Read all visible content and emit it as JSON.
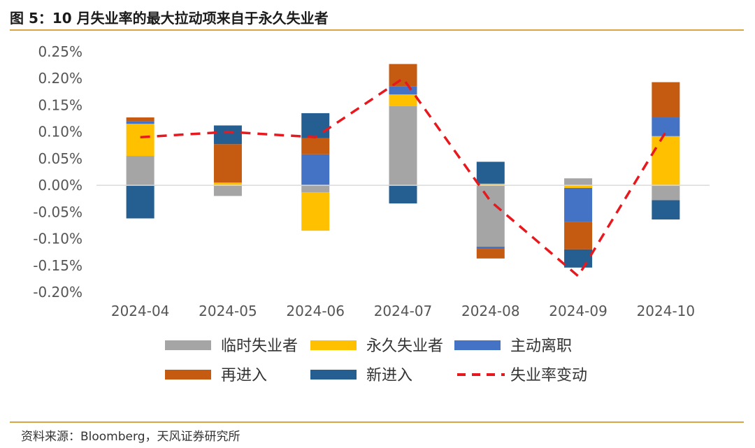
{
  "title": "图 5：10 月失业率的最大拉动项来自于永久失业者",
  "source": "资料来源：Bloomberg，天风证券研究所",
  "chart_data": {
    "type": "bar",
    "stacked": true,
    "title": "图 5：10 月失业率的最大拉动项来自于永久失业者",
    "xlabel": "",
    "ylabel": "",
    "categories": [
      "2024-04",
      "2024-05",
      "2024-06",
      "2024-07",
      "2024-08",
      "2024-09",
      "2024-10"
    ],
    "ylim": [
      -0.2,
      0.25
    ],
    "yticks": [
      0.25,
      0.2,
      0.15,
      0.1,
      0.05,
      0.0,
      -0.05,
      -0.1,
      -0.15,
      -0.2
    ],
    "ytick_labels": [
      "0.25%",
      "0.20%",
      "0.15%",
      "0.10%",
      "0.05%",
      "0.00%",
      "-0.05%",
      "-0.10%",
      "-0.15%",
      "-0.20%"
    ],
    "legend_position": "bottom",
    "grid": false,
    "series": [
      {
        "name": "临时失业者",
        "color": "#a5a5a5",
        "type": "bar",
        "values": [
          0.055,
          -0.02,
          -0.013,
          0.148,
          -0.115,
          0.013,
          -0.028
        ]
      },
      {
        "name": "永久失业者",
        "color": "#ffc000",
        "type": "bar",
        "values": [
          0.06,
          0.005,
          -0.072,
          0.022,
          0.003,
          -0.005,
          0.092
        ]
      },
      {
        "name": "主动离职",
        "color": "#4472c4",
        "type": "bar",
        "values": [
          0.005,
          0.0,
          0.058,
          0.015,
          -0.004,
          -0.063,
          0.035
        ]
      },
      {
        "name": "再进入",
        "color": "#c55a11",
        "type": "bar",
        "values": [
          0.007,
          0.072,
          0.03,
          0.042,
          -0.018,
          -0.052,
          0.066
        ]
      },
      {
        "name": "新进入",
        "color": "#255e91",
        "type": "bar",
        "values": [
          -0.062,
          0.035,
          0.047,
          -0.034,
          0.041,
          -0.034,
          -0.036
        ]
      },
      {
        "name": "失业率变动",
        "color": "#e8191e",
        "type": "line",
        "style": "dashed",
        "values": [
          0.09,
          0.1,
          0.09,
          0.2,
          -0.03,
          -0.17,
          0.1
        ]
      }
    ]
  }
}
